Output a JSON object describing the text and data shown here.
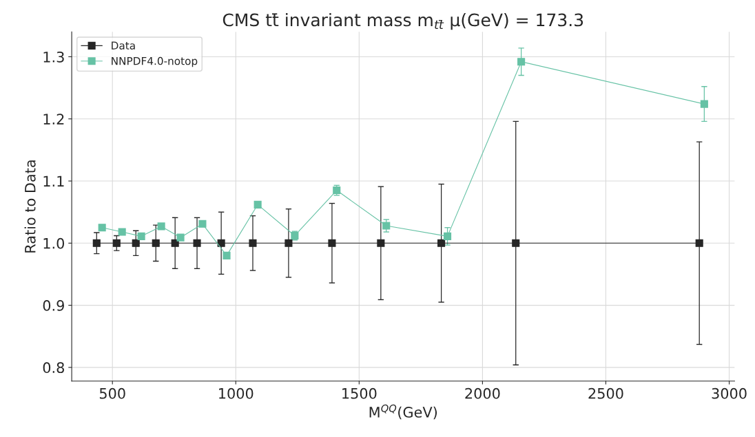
{
  "chart_data": {
    "type": "line",
    "title": "CMS tt̄ invariant mass m$_{tt̄}$ μ(GeV) = 173.3",
    "xlabel": "M$^{QQ}$(GeV)",
    "ylabel": "Ratio to Data",
    "series": [
      {
        "name": "Data",
        "color": "#262626",
        "x": [
          436,
          517,
          595,
          676,
          754,
          843,
          941,
          1069,
          1214,
          1390,
          1588,
          1833,
          2135,
          2879
        ],
        "values": [
          1.0,
          1.0,
          1.0,
          1.0,
          1.0,
          1.0,
          1.0,
          1.0,
          1.0,
          1.0,
          1.0,
          1.0,
          1.0,
          1.0
        ],
        "errors": [
          0.017,
          0.012,
          0.02,
          0.029,
          0.041,
          0.041,
          0.05,
          0.044,
          0.055,
          0.064,
          0.091,
          0.095,
          0.196,
          0.163
        ]
      },
      {
        "name": "NNPDF4.0-notop",
        "color": "#66c2a5",
        "x": [
          458,
          539,
          617,
          698,
          776,
          865,
          963,
          1089,
          1239,
          1409,
          1610,
          1858,
          2157,
          2899
        ],
        "values": [
          1.025,
          1.018,
          1.011,
          1.027,
          1.009,
          1.031,
          0.98,
          1.062,
          1.012,
          1.085,
          1.028,
          1.011,
          1.292,
          1.224
        ],
        "errors": [
          0.003,
          0.003,
          0.003,
          0.003,
          0.003,
          0.003,
          0.003,
          0.005,
          0.007,
          0.008,
          0.01,
          0.014,
          0.022,
          0.028
        ]
      }
    ],
    "xlim": [
      335,
      3022
    ],
    "ylim": [
      0.778,
      1.34
    ],
    "xticks": [
      500,
      1000,
      1500,
      2000,
      2500,
      3000
    ],
    "yticks": [
      0.8,
      0.9,
      {
        "value": 1.0,
        "label": "1.0"
      },
      1.1,
      1.2,
      1.3
    ],
    "grid": true,
    "legend": "top left",
    "marker": "square",
    "line_style": "solid"
  }
}
